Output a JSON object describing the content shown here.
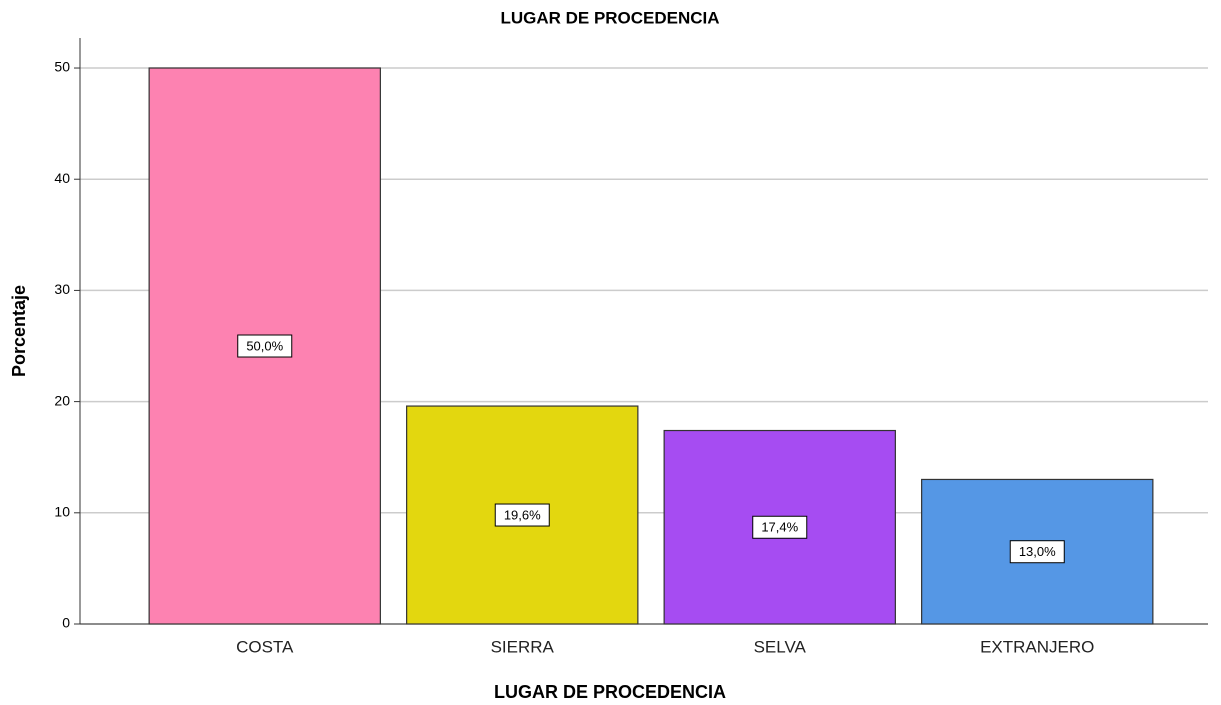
{
  "chart_data": {
    "type": "bar",
    "title": "LUGAR DE PROCEDENCIA",
    "x_label": "LUGAR DE PROCEDENCIA",
    "y_label": "Porcentaje",
    "categories": [
      "COSTA",
      "SIERRA",
      "SELVA",
      "EXTRANJERO"
    ],
    "values": [
      50.0,
      19.6,
      17.4,
      13.0
    ],
    "value_labels": [
      "50,0%",
      "19,6%",
      "17,4%",
      "13,0%"
    ],
    "colors": [
      "#fd82b1",
      "#e3d70f",
      "#a64cf2",
      "#5597e5"
    ],
    "ylim": [
      0,
      52.7
    ],
    "yticks": [
      0,
      10,
      20,
      30,
      40,
      50
    ],
    "grid": true
  }
}
